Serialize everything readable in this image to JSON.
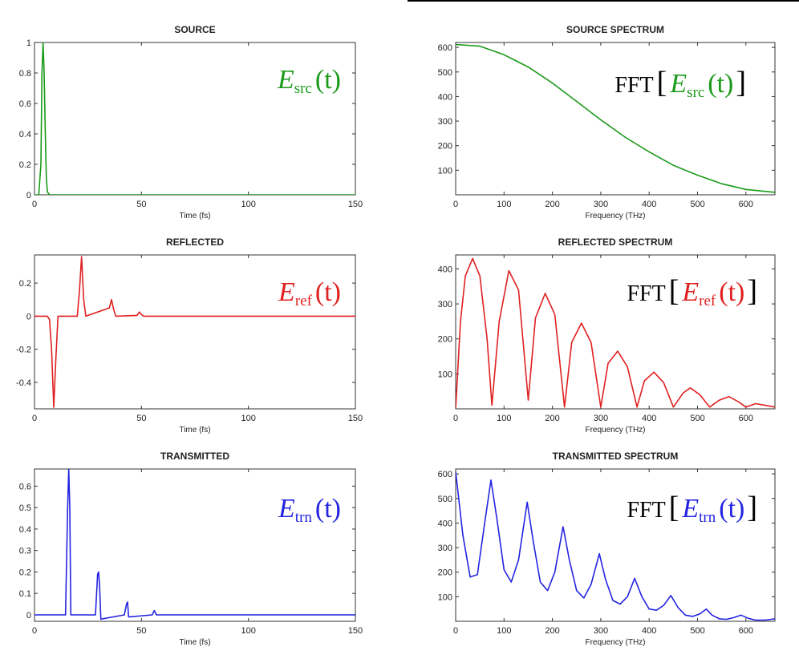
{
  "colors": {
    "green": "#1a9a1a",
    "red": "#e02020",
    "blue": "#2424e0"
  },
  "chart_data": [
    {
      "id": "source",
      "type": "line",
      "title": "SOURCE",
      "xlabel": "Time (fs)",
      "ylabel": "",
      "xlim": [
        0,
        150
      ],
      "ylim": [
        0,
        1
      ],
      "xticks": [
        0,
        50,
        100,
        150
      ],
      "yticks": [
        0,
        0.2,
        0.4,
        0.6,
        0.8,
        1
      ],
      "yticklabels": [
        "0",
        "0.2",
        "0.4",
        "0.6",
        "0.8",
        "1"
      ],
      "color": "green",
      "annotation": {
        "main": "E",
        "sub": "src",
        "arg": "(t)",
        "fft": false
      },
      "series": [
        {
          "x": [
            0,
            2,
            3,
            3.5,
            4,
            4.5,
            5,
            5.5,
            6,
            7,
            150
          ],
          "y": [
            0,
            0,
            0.2,
            0.8,
            1.0,
            0.8,
            0.45,
            0.12,
            0.02,
            0,
            0
          ]
        }
      ]
    },
    {
      "id": "source-spectrum",
      "type": "line",
      "title": "SOURCE SPECTRUM",
      "xlabel": "Frequency (THz)",
      "ylabel": "",
      "xlim": [
        0,
        660
      ],
      "ylim": [
        0,
        620
      ],
      "xticks": [
        0,
        100,
        200,
        300,
        400,
        500,
        600
      ],
      "yticks": [
        100,
        200,
        300,
        400,
        500,
        600
      ],
      "color": "green",
      "annotation": {
        "main": "E",
        "sub": "src",
        "arg": "(t)",
        "fft": true,
        "fft_label": "FFT"
      },
      "series": [
        {
          "x": [
            0,
            50,
            100,
            150,
            200,
            250,
            300,
            350,
            400,
            450,
            500,
            550,
            600,
            660
          ],
          "y": [
            612,
            605,
            570,
            520,
            455,
            380,
            305,
            235,
            175,
            120,
            80,
            45,
            22,
            10
          ]
        }
      ]
    },
    {
      "id": "reflected",
      "type": "line",
      "title": "REFLECTED",
      "xlabel": "Time (fs)",
      "ylabel": "",
      "xlim": [
        0,
        150
      ],
      "ylim": [
        -0.56,
        0.37
      ],
      "xticks": [
        0,
        50,
        100,
        150
      ],
      "yticks": [
        -0.4,
        -0.2,
        0,
        0.2
      ],
      "yticklabels": [
        "-0.4",
        "-0.2",
        "0",
        "0.2"
      ],
      "color": "red",
      "annotation": {
        "main": "E",
        "sub": "ref",
        "arg": "(t)",
        "fft": false
      },
      "series": [
        {
          "x": [
            0,
            6,
            7,
            8,
            9,
            10,
            11,
            20,
            21,
            22,
            23,
            24,
            35,
            36,
            37,
            38,
            48,
            49,
            50,
            51,
            150
          ],
          "y": [
            0,
            0,
            -0.02,
            -0.2,
            -0.55,
            -0.25,
            0,
            0,
            0.15,
            0.36,
            0.1,
            0,
            0.05,
            0.1,
            0.04,
            0,
            0.005,
            0.025,
            0.01,
            0,
            0
          ]
        }
      ]
    },
    {
      "id": "reflected-spectrum",
      "type": "line",
      "title": "REFLECTED SPECTRUM",
      "xlabel": "Frequency (THz)",
      "ylabel": "",
      "xlim": [
        0,
        660
      ],
      "ylim": [
        0,
        440
      ],
      "xticks": [
        0,
        100,
        200,
        300,
        400,
        500,
        600
      ],
      "yticks": [
        100,
        200,
        300,
        400
      ],
      "color": "red",
      "annotation": {
        "main": "E",
        "sub": "ref",
        "arg": "(t)",
        "fft": true,
        "fft_label": "FFT"
      },
      "series": [
        {
          "x": [
            0,
            10,
            20,
            35,
            50,
            65,
            75,
            90,
            110,
            130,
            150,
            165,
            185,
            205,
            225,
            240,
            260,
            280,
            300,
            315,
            335,
            355,
            375,
            390,
            410,
            430,
            450,
            470,
            485,
            505,
            525,
            545,
            565,
            585,
            600,
            620,
            640,
            660
          ],
          "y": [
            0,
            250,
            380,
            430,
            380,
            200,
            10,
            250,
            395,
            340,
            25,
            260,
            330,
            270,
            5,
            190,
            245,
            190,
            5,
            130,
            165,
            120,
            5,
            80,
            105,
            75,
            5,
            45,
            60,
            40,
            5,
            25,
            35,
            20,
            5,
            15,
            10,
            5
          ]
        }
      ]
    },
    {
      "id": "transmitted",
      "type": "line",
      "title": "TRANSMITTED",
      "xlabel": "Time (fs)",
      "ylabel": "",
      "xlim": [
        0,
        150
      ],
      "ylim": [
        -0.03,
        0.68
      ],
      "xticks": [
        0,
        50,
        100,
        150
      ],
      "yticks": [
        0,
        0.1,
        0.2,
        0.3,
        0.4,
        0.5,
        0.6
      ],
      "yticklabels": [
        "0",
        "0.1",
        "0.2",
        "0.3",
        "0.4",
        "0.5",
        "0.6"
      ],
      "color": "blue",
      "annotation": {
        "main": "E",
        "sub": "trn",
        "arg": "(t)",
        "fft": false
      },
      "series": [
        {
          "x": [
            0,
            14.5,
            15.5,
            16,
            16.5,
            17,
            28.5,
            29.5,
            30,
            30.5,
            31,
            42,
            43,
            43.5,
            44,
            55,
            56,
            57,
            150
          ],
          "y": [
            0,
            0,
            0.5,
            0.68,
            0.5,
            0,
            0,
            0.19,
            0.2,
            0.12,
            -0.02,
            0,
            0.05,
            0.06,
            -0.01,
            0,
            0.02,
            0,
            0
          ]
        }
      ]
    },
    {
      "id": "transmitted-spectrum",
      "type": "line",
      "title": "TRANSMITTED SPECTRUM",
      "xlabel": "Frequency (THz)",
      "ylabel": "",
      "xlim": [
        0,
        660
      ],
      "ylim": [
        0,
        620
      ],
      "xticks": [
        0,
        100,
        200,
        300,
        400,
        500,
        600
      ],
      "yticks": [
        100,
        200,
        300,
        400,
        500,
        600
      ],
      "color": "blue",
      "annotation": {
        "main": "E",
        "sub": "trn",
        "arg": "(t)",
        "fft": true,
        "fft_label": "FFT"
      },
      "series": [
        {
          "x": [
            0,
            15,
            30,
            45,
            60,
            73,
            85,
            100,
            115,
            130,
            148,
            160,
            175,
            190,
            205,
            222,
            235,
            250,
            265,
            280,
            297,
            310,
            325,
            340,
            355,
            370,
            385,
            400,
            415,
            430,
            445,
            460,
            475,
            490,
            505,
            518,
            530,
            545,
            560,
            575,
            590,
            605,
            620,
            640,
            660
          ],
          "y": [
            610,
            350,
            180,
            190,
            400,
            575,
            420,
            210,
            160,
            250,
            485,
            330,
            160,
            125,
            200,
            385,
            250,
            125,
            95,
            150,
            275,
            170,
            85,
            70,
            100,
            175,
            100,
            50,
            45,
            65,
            105,
            55,
            25,
            20,
            30,
            50,
            25,
            10,
            8,
            15,
            25,
            12,
            5,
            5,
            10
          ]
        }
      ]
    }
  ]
}
